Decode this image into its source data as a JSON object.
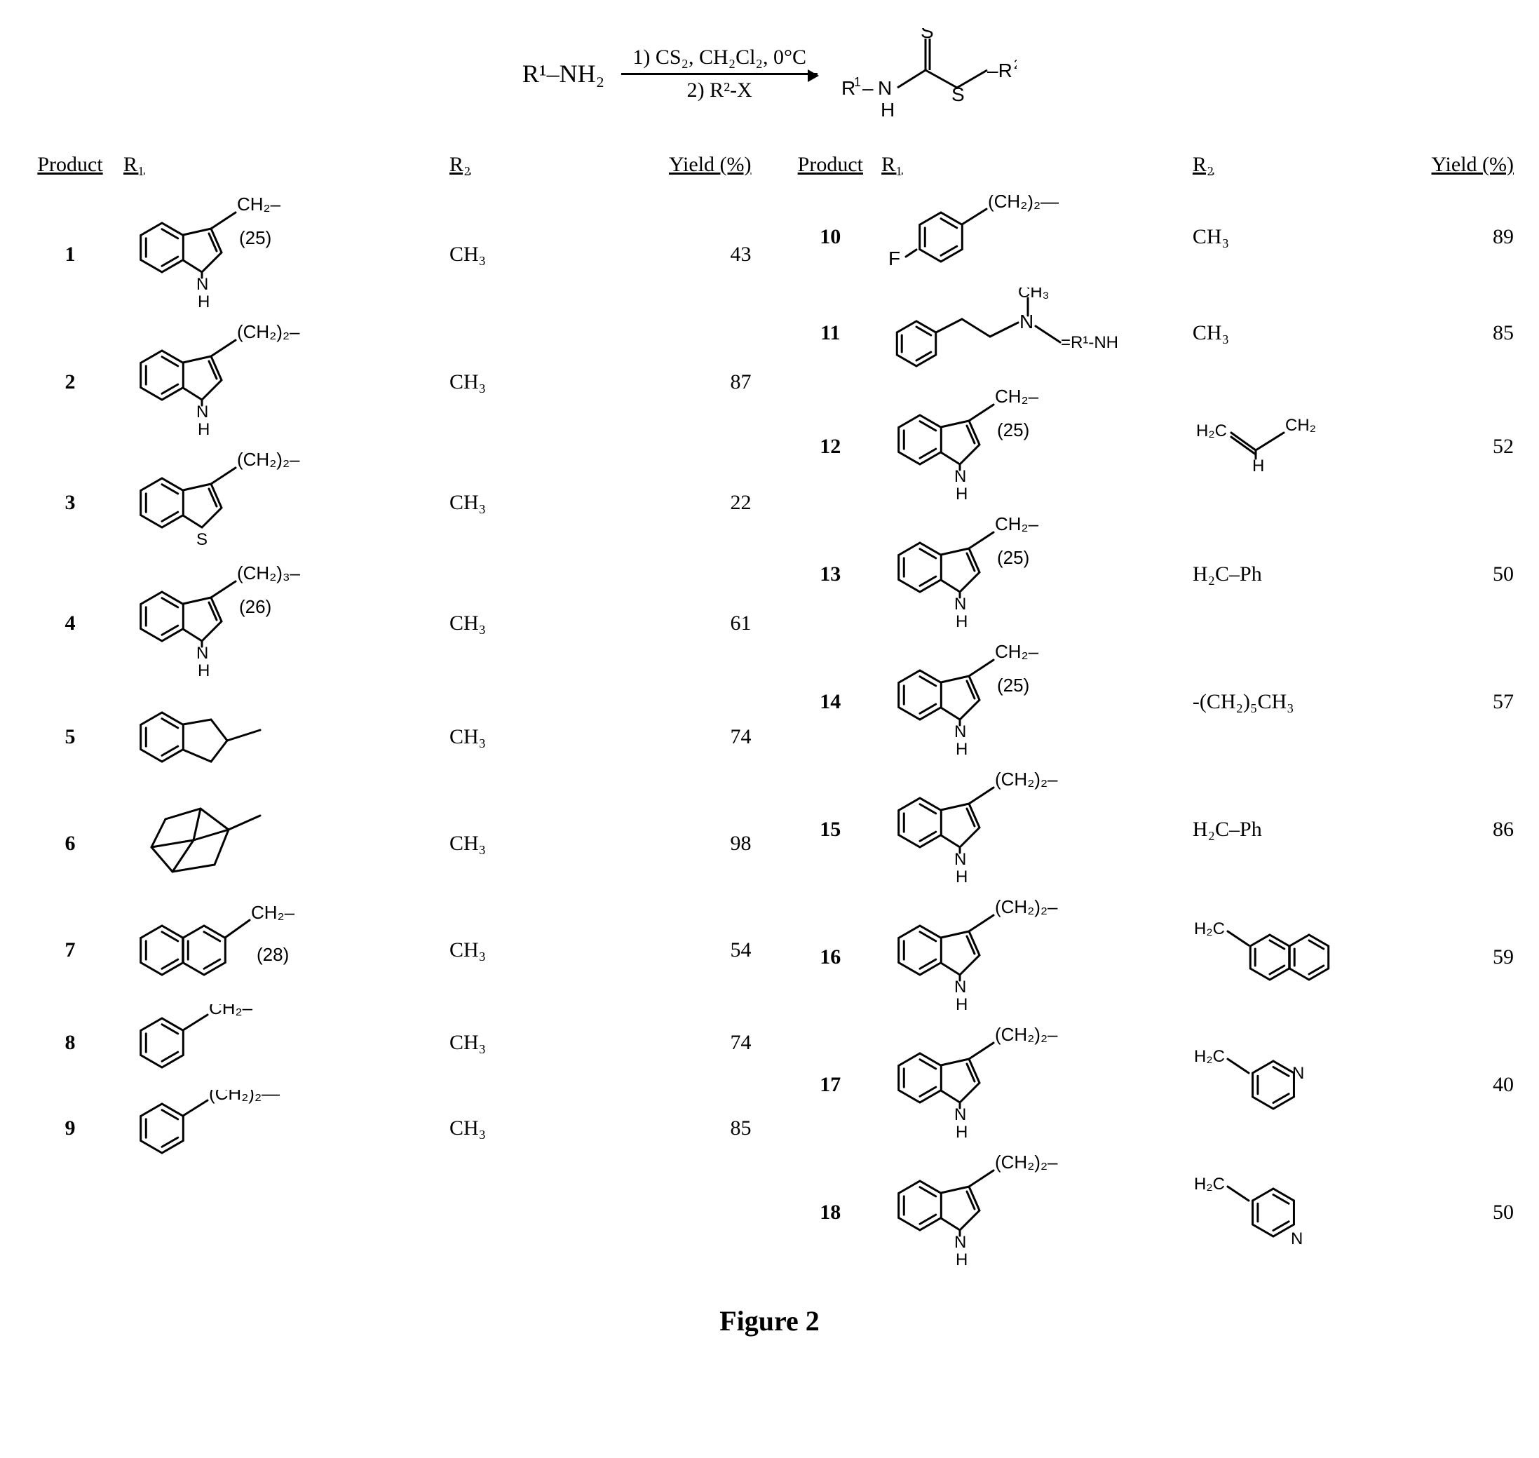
{
  "scheme": {
    "left": "R¹–NH₂",
    "cond_top": "1) CS₂, CH₂Cl₂, 0°C",
    "cond_bot": "2) R²-X",
    "product_svg": "dithiocarbamate"
  },
  "headers": {
    "p": "Product",
    "r1": "R₁",
    "r2": "R₂",
    "y": "Yield (%)"
  },
  "left_rows": [
    {
      "n": "1",
      "r1": "indole_CH2",
      "note": "(25)",
      "r2": "CH₃",
      "y": "43"
    },
    {
      "n": "2",
      "r1": "indole_CH2x2",
      "note": "",
      "r2": "CH₃",
      "y": "87"
    },
    {
      "n": "3",
      "r1": "benzothiophene_CH2x2",
      "note": "",
      "r2": "CH₃",
      "y": "22"
    },
    {
      "n": "4",
      "r1": "indole_CH2x3",
      "note": "(26)",
      "r2": "CH₃",
      "y": "61"
    },
    {
      "n": "5",
      "r1": "indane",
      "note": "",
      "r2": "CH₃",
      "y": "74"
    },
    {
      "n": "6",
      "r1": "adamantyl",
      "note": "",
      "r2": "CH₃",
      "y": "98"
    },
    {
      "n": "7",
      "r1": "naphthyl_CH2",
      "note": "(28)",
      "r2": "CH₃",
      "y": "54"
    },
    {
      "n": "8",
      "r1": "phenyl_CH2",
      "note": "",
      "r2": "CH₃",
      "y": "74"
    },
    {
      "n": "9",
      "r1": "phenyl_CH2x2",
      "note": "",
      "r2": "CH₃",
      "y": "85"
    }
  ],
  "right_rows": [
    {
      "n": "10",
      "r1": "pF_phenyl_CH2x2",
      "note": "",
      "r2": "CH₃",
      "y": "89"
    },
    {
      "n": "11",
      "r1": "phenethyl_NMe",
      "note": "",
      "r2": "CH₃",
      "y": "85"
    },
    {
      "n": "12",
      "r1": "indole_CH2",
      "note": "(25)",
      "r2": "allyl",
      "y": "52"
    },
    {
      "n": "13",
      "r1": "indole_CH2",
      "note": "(25)",
      "r2": "H₂C–Ph",
      "y": "50"
    },
    {
      "n": "14",
      "r1": "indole_CH2",
      "note": "(25)",
      "r2": "-(CH₂)₅CH₃",
      "y": "57"
    },
    {
      "n": "15",
      "r1": "indole_CH2x2",
      "note": "",
      "r2": "H₂C–Ph",
      "y": "86"
    },
    {
      "n": "16",
      "r1": "indole_CH2x2",
      "note": "",
      "r2": "naphthylmethyl",
      "y": "59"
    },
    {
      "n": "17",
      "r1": "indole_CH2x2",
      "note": "",
      "r2": "pyridyl3methyl",
      "y": "40"
    },
    {
      "n": "18",
      "r1": "indole_CH2x2",
      "note": "",
      "r2": "pyridyl4methyl",
      "y": "50"
    }
  ],
  "caption": "Figure 2",
  "style": {
    "stroke": "#000000",
    "stroke_width": 3,
    "font": "Arial, Helvetica, sans-serif",
    "label_size": 24
  }
}
